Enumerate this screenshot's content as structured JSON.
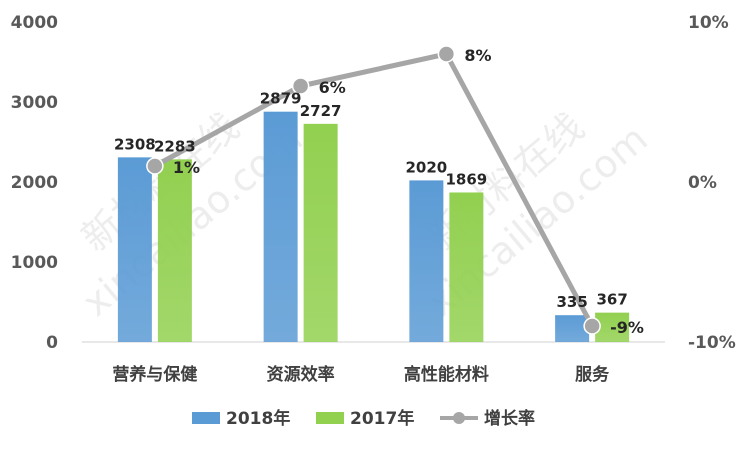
{
  "chart_data": {
    "type": "bar",
    "categories": [
      "营养与保健",
      "资源效率",
      "高性能材料",
      "服务"
    ],
    "series": [
      {
        "name": "2018年",
        "type": "bar",
        "axis": "left",
        "color": "#5B9BD5",
        "values": [
          2308,
          2879,
          2020,
          335
        ],
        "labels": [
          "2308",
          "2879",
          "2020",
          "335"
        ]
      },
      {
        "name": "2017年",
        "type": "bar",
        "axis": "left",
        "color": "#92D050",
        "values": [
          2283,
          2727,
          1869,
          367
        ],
        "labels": [
          "2283",
          "2727",
          "1869",
          "367"
        ]
      },
      {
        "name": "增长率",
        "type": "line",
        "axis": "right",
        "color": "#A6A6A6",
        "values": [
          1,
          6,
          8,
          -9
        ],
        "labels": [
          "1%",
          "6%",
          "8%",
          "-9%"
        ]
      }
    ],
    "y_left": {
      "min": 0,
      "max": 4000,
      "ticks": [
        "0",
        "1000",
        "2000",
        "3000",
        "4000"
      ]
    },
    "y_right": {
      "min": -10,
      "max": 10,
      "ticks": [
        "-10%",
        "0%",
        "10%"
      ]
    },
    "legend_position": "bottom",
    "grid": false
  },
  "watermark": [
    "新材料在线",
    "xincailiao.com"
  ]
}
